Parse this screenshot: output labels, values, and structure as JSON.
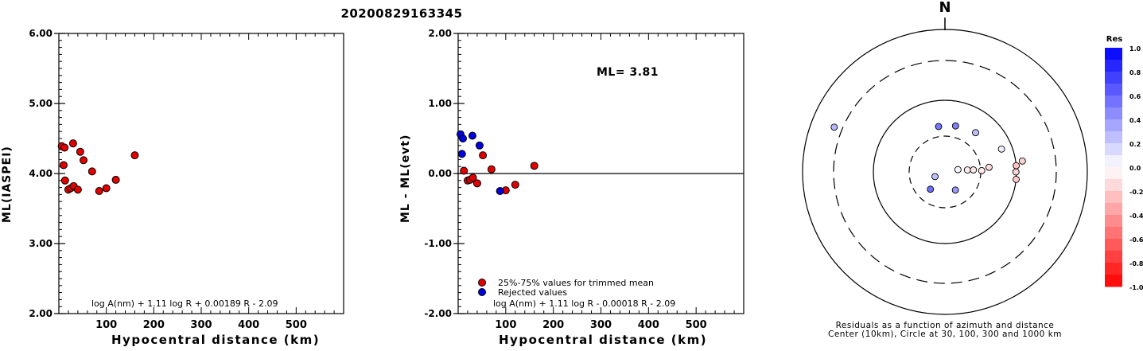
{
  "page": {
    "title": "20200829163345"
  },
  "chart_data": [
    {
      "type": "scatter",
      "title": "",
      "xlabel": "Hypocentral distance (km)",
      "ylabel": "ML(IASPEI)",
      "xlim": [
        0,
        600
      ],
      "ylim": [
        2.0,
        6.0
      ],
      "xticks": [
        "100",
        "200",
        "300",
        "400",
        "500"
      ],
      "yticks": [
        "2.00",
        "3.00",
        "4.00",
        "5.00",
        "6.00"
      ],
      "formula": "log A(nm) + 1.11 log R + 0.00189 R - 2.09",
      "point_color": "#e00000",
      "series": [
        {
          "points": [
            [
              6,
              4.39
            ],
            [
              10,
              4.12
            ],
            [
              12,
              4.37
            ],
            [
              13,
              3.9
            ],
            [
              20,
              3.77
            ],
            [
              25,
              3.79
            ],
            [
              30,
              4.43
            ],
            [
              31,
              3.82
            ],
            [
              40,
              3.77
            ],
            [
              45,
              4.31
            ],
            [
              52,
              4.19
            ],
            [
              70,
              4.03
            ],
            [
              85,
              3.75
            ],
            [
              100,
              3.79
            ],
            [
              120,
              3.91
            ],
            [
              160,
              4.26
            ]
          ]
        }
      ]
    },
    {
      "type": "scatter",
      "title": "",
      "xlabel": "Hypocentral distance (km)",
      "ylabel": "ML - ML(evt)",
      "xlim": [
        0,
        600
      ],
      "ylim": [
        -2.0,
        2.0
      ],
      "xticks": [
        "100",
        "200",
        "300",
        "400",
        "500"
      ],
      "yticks": [
        "-2.00",
        "-1.00",
        "0.00",
        "1.00",
        "2.00"
      ],
      "annotation": "ML= 3.81",
      "formula": "log A(nm) + 1.11 log R - 0.00018 R - 2.09",
      "legend": [
        {
          "label": "25%-75% values for trimmed mean",
          "color": "#e00000"
        },
        {
          "label": "Rejected values",
          "color": "#0000e0"
        }
      ],
      "series": [
        {
          "name": "25%-75% values for trimmed mean",
          "color": "#e00000",
          "points": [
            [
              12,
              0.04
            ],
            [
              20,
              -0.1
            ],
            [
              25,
              -0.09
            ],
            [
              31,
              -0.06
            ],
            [
              40,
              -0.14
            ],
            [
              52,
              0.26
            ],
            [
              70,
              0.06
            ],
            [
              100,
              -0.24
            ],
            [
              120,
              -0.16
            ],
            [
              160,
              0.11
            ]
          ]
        },
        {
          "name": "Rejected values",
          "color": "#0000e0",
          "points": [
            [
              5,
              0.56
            ],
            [
              8,
              0.28
            ],
            [
              10,
              0.5
            ],
            [
              30,
              0.54
            ],
            [
              45,
              0.4
            ],
            [
              88,
              -0.25
            ]
          ]
        }
      ]
    },
    {
      "type": "scatter",
      "title": "N",
      "caption_line1": "Residuals as a function of azimuth and distance",
      "caption_line2": "Center (10km), Circle at 30, 100, 300 and 1000 km",
      "colorbar_title": "Res",
      "colorbar_ticks": [
        "1.0",
        "0.8",
        "0.6",
        "0.4",
        "0.2",
        "0.0",
        "-0.2",
        "-0.4",
        "-0.6",
        "-0.8",
        "-1.0"
      ],
      "rings_km": [
        10,
        30,
        100,
        300,
        1000
      ],
      "points_polar": [
        {
          "azimuth_deg": 13,
          "distance_km": 44,
          "residual": 0.5
        },
        {
          "azimuth_deg": 38,
          "distance_km": 48,
          "residual": 0.26
        },
        {
          "azimuth_deg": 352,
          "distance_km": 42,
          "residual": 0.54
        },
        {
          "azimuth_deg": 292,
          "distance_km": 410,
          "residual": 0.28
        },
        {
          "azimuth_deg": 220,
          "distance_km": 20,
          "residual": 0.56
        },
        {
          "azimuth_deg": 150,
          "distance_km": 19,
          "residual": 0.4
        },
        {
          "azimuth_deg": 245,
          "distance_km": 14,
          "residual": 0.25
        },
        {
          "azimuth_deg": 80,
          "distance_km": 15,
          "residual": 0.04
        },
        {
          "azimuth_deg": 85,
          "distance_km": 20,
          "residual": -0.06
        },
        {
          "azimuth_deg": 86,
          "distance_km": 24,
          "residual": -0.1
        },
        {
          "azimuth_deg": 88,
          "distance_km": 31,
          "residual": -0.09
        },
        {
          "azimuth_deg": 84,
          "distance_km": 40,
          "residual": -0.14
        },
        {
          "azimuth_deg": 68,
          "distance_km": 70,
          "residual": 0.06
        },
        {
          "azimuth_deg": 85,
          "distance_km": 100,
          "residual": -0.24
        },
        {
          "azimuth_deg": 90,
          "distance_km": 98,
          "residual": -0.16
        },
        {
          "azimuth_deg": 96,
          "distance_km": 100,
          "residual": -0.2
        },
        {
          "azimuth_deg": 82,
          "distance_km": 120,
          "residual": -0.18
        }
      ]
    }
  ]
}
